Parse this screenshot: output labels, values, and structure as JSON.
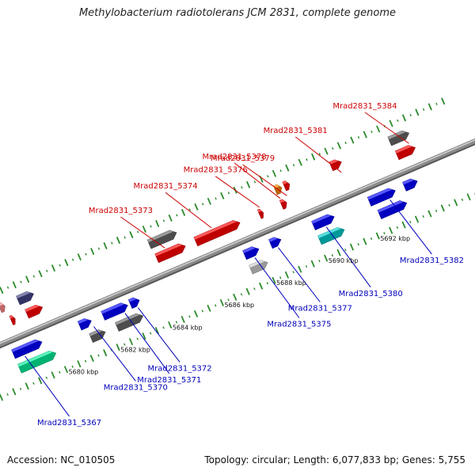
{
  "title": "Methylobacterium radiotolerans JCM 2831, complete genome",
  "footer": {
    "accession": "Accession: NC_010505",
    "summary": "Topology: circular; Length: 6,077,833 bp; Genes: 5,755"
  },
  "colors": {
    "backbone": "#8a8a8a",
    "tick": "#2a8a2a",
    "label_top": "#cc0000",
    "label_bottom": "#0000bb"
  },
  "scale_labels": [
    {
      "text": "5680 kbp",
      "kbp": 5680
    },
    {
      "text": "5682 kbp",
      "kbp": 5682
    },
    {
      "text": "5684 kbp",
      "kbp": 5684
    },
    {
      "text": "5686 kbp",
      "kbp": 5686
    },
    {
      "text": "5688 kbp",
      "kbp": 5688
    },
    {
      "text": "5690 kbp",
      "kbp": 5690
    },
    {
      "text": "5692 kbp",
      "kbp": 5692
    }
  ],
  "genes_top": [
    {
      "color": "#ff8a8a",
      "start": 5678.2,
      "end": 5678.4,
      "row": 1
    },
    {
      "color": "#ff0000",
      "start": 5678.4,
      "end": 5678.55,
      "row": 0
    },
    {
      "color": "#444488",
      "start": 5678.9,
      "end": 5679.5,
      "row": 1
    },
    {
      "color": "#ff0000",
      "start": 5679.0,
      "end": 5679.6,
      "row": 0
    },
    {
      "color": "#666666",
      "start": 5683.95,
      "end": 5685.0,
      "row": 1
    },
    {
      "color": "#ff0000",
      "start": 5684.0,
      "end": 5685.1,
      "row": 0
    },
    {
      "color": "#ff0000",
      "start": 5685.5,
      "end": 5687.2,
      "row": 0
    },
    {
      "color": "#ff0000",
      "start": 5687.95,
      "end": 5688.1,
      "row": 0
    },
    {
      "color": "#ff0000",
      "start": 5688.8,
      "end": 5689.0,
      "row": 0
    },
    {
      "color": "#ff8800",
      "start": 5688.8,
      "end": 5689.05,
      "row": 1
    },
    {
      "color": "#ff0000",
      "start": 5689.15,
      "end": 5689.35,
      "row": 1
    },
    {
      "color": "#ff0000",
      "start": 5690.95,
      "end": 5691.35,
      "row": 1
    },
    {
      "color": "#666666",
      "start": 5693.2,
      "end": 5693.95,
      "row": 1
    },
    {
      "color": "#ff0000",
      "start": 5693.25,
      "end": 5693.95,
      "row": 0
    }
  ],
  "genes_bottom": [
    {
      "color": "#0000ff",
      "start": 5678.0,
      "end": 5679.1,
      "row": 0
    },
    {
      "color": "#00ee99",
      "start": 5678.0,
      "end": 5679.4,
      "row": 1
    },
    {
      "color": "#0000ff",
      "start": 5680.55,
      "end": 5681.0,
      "row": 0
    },
    {
      "color": "#666666",
      "start": 5680.75,
      "end": 5681.3,
      "row": 1
    },
    {
      "color": "#0000ff",
      "start": 5681.45,
      "end": 5682.4,
      "row": 0
    },
    {
      "color": "#666666",
      "start": 5681.75,
      "end": 5682.75,
      "row": 1
    },
    {
      "color": "#0000ff",
      "start": 5682.5,
      "end": 5682.85,
      "row": 0
    },
    {
      "color": "#0000ff",
      "start": 5686.9,
      "end": 5687.45,
      "row": 0
    },
    {
      "color": "#cccccc",
      "start": 5686.9,
      "end": 5687.55,
      "row": 1
    },
    {
      "color": "#0000ff",
      "start": 5687.9,
      "end": 5688.3,
      "row": 0
    },
    {
      "color": "#0000ff",
      "start": 5689.55,
      "end": 5690.35,
      "row": 0
    },
    {
      "color": "#00cccc",
      "start": 5689.55,
      "end": 5690.5,
      "row": 1
    },
    {
      "color": "#0000ff",
      "start": 5691.7,
      "end": 5692.7,
      "row": 0
    },
    {
      "color": "#0000ff",
      "start": 5691.85,
      "end": 5692.9,
      "row": 1
    },
    {
      "color": "#0000ff",
      "start": 5693.05,
      "end": 5693.55,
      "row": 0
    }
  ],
  "labels_top": [
    {
      "text": "Mrad2831_5384",
      "kbp": 5693.8
    },
    {
      "text": "Mrad2831_5381",
      "kbp": 5691.2
    },
    {
      "text": "Mrad2831_5379",
      "kbp": 5689.1
    },
    {
      "text": "Mrad2831_5378",
      "kbp": 5688.85
    },
    {
      "text": "Mrad2831_5376",
      "kbp": 5688.05
    },
    {
      "text": "Mrad2831_5374",
      "kbp": 5686.2
    },
    {
      "text": "Mrad2831_5373",
      "kbp": 5684.4
    }
  ],
  "labels_bottom": [
    {
      "text": "Mrad2831_5382",
      "kbp": 5692.4
    },
    {
      "text": "Mrad2831_5380",
      "kbp": 5689.95
    },
    {
      "text": "Mrad2831_5377",
      "kbp": 5688.1
    },
    {
      "text": "Mrad2831_5375",
      "kbp": 5687.2
    },
    {
      "text": "Mrad2831_5372",
      "kbp": 5682.7
    },
    {
      "text": "Mrad2831_5371",
      "kbp": 5682.2
    },
    {
      "text": "Mrad2831_5370",
      "kbp": 5681.0
    },
    {
      "text": "Mrad2831_5367",
      "kbp": 5678.35
    }
  ]
}
